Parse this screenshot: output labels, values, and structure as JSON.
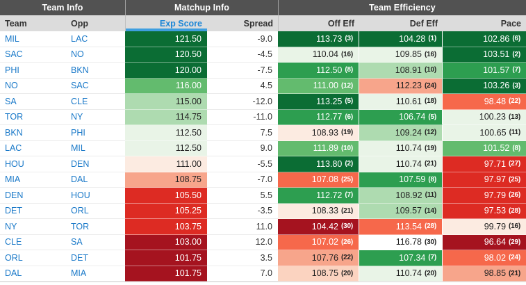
{
  "groups": [
    "Team Info",
    "Matchup Info",
    "Team Efficiency"
  ],
  "columns": [
    {
      "label": "Team"
    },
    {
      "label": "Opp"
    },
    {
      "label": "Exp Score"
    },
    {
      "label": "Spread"
    },
    {
      "label": "Off Eff"
    },
    {
      "label": "Def Eff"
    },
    {
      "label": "Pace"
    }
  ],
  "sort": {
    "column_index": 2,
    "accent": "#3f9fe0",
    "sorted_label_color": "#1e87d6"
  },
  "link_color": "#1878c8",
  "palette": {
    "g5": {
      "bg": "#0b6d34",
      "fg": "#ffffff"
    },
    "g4": {
      "bg": "#2d9e50",
      "fg": "#ffffff"
    },
    "g3": {
      "bg": "#63bb6e",
      "fg": "#ffffff"
    },
    "g2": {
      "bg": "#aedbb0",
      "fg": "#222222"
    },
    "g1": {
      "bg": "#e9f4e7",
      "fg": "#222222"
    },
    "w": {
      "bg": "#ffffff",
      "fg": "#222222"
    },
    "r1": {
      "bg": "#fcebe1",
      "fg": "#222222"
    },
    "r2": {
      "bg": "#fbd3c0",
      "fg": "#222222"
    },
    "r3": {
      "bg": "#f7a58b",
      "fg": "#222222"
    },
    "r4": {
      "bg": "#f6684b",
      "fg": "#ffffff"
    },
    "r5": {
      "bg": "#dd2b23",
      "fg": "#ffffff"
    },
    "r6": {
      "bg": "#a5131f",
      "fg": "#ffffff"
    }
  },
  "rows": [
    {
      "team": "MIL",
      "opp": "LAC",
      "exp": {
        "v": "121.50",
        "c": "g5"
      },
      "spread": "-9.0",
      "off": {
        "v": "113.73",
        "r": "(3)",
        "c": "g5"
      },
      "def": {
        "v": "104.28",
        "r": "(1)",
        "c": "g5"
      },
      "pace": {
        "v": "102.86",
        "r": "(6)",
        "c": "g5"
      }
    },
    {
      "team": "SAC",
      "opp": "NO",
      "exp": {
        "v": "120.50",
        "c": "g5"
      },
      "spread": "-4.5",
      "off": {
        "v": "110.04",
        "r": "(16)",
        "c": "g1"
      },
      "def": {
        "v": "109.85",
        "r": "(16)",
        "c": "g1"
      },
      "pace": {
        "v": "103.51",
        "r": "(2)",
        "c": "g5"
      }
    },
    {
      "team": "PHI",
      "opp": "BKN",
      "exp": {
        "v": "120.00",
        "c": "g5"
      },
      "spread": "-7.5",
      "off": {
        "v": "112.50",
        "r": "(8)",
        "c": "g4"
      },
      "def": {
        "v": "108.91",
        "r": "(10)",
        "c": "g2"
      },
      "pace": {
        "v": "101.57",
        "r": "(7)",
        "c": "g4"
      }
    },
    {
      "team": "NO",
      "opp": "SAC",
      "exp": {
        "v": "116.00",
        "c": "g3"
      },
      "spread": "4.5",
      "off": {
        "v": "111.00",
        "r": "(12)",
        "c": "g3"
      },
      "def": {
        "v": "112.23",
        "r": "(24)",
        "c": "r3"
      },
      "pace": {
        "v": "103.26",
        "r": "(3)",
        "c": "g5"
      }
    },
    {
      "team": "SA",
      "opp": "CLE",
      "exp": {
        "v": "115.00",
        "c": "g2"
      },
      "spread": "-12.0",
      "off": {
        "v": "113.25",
        "r": "(5)",
        "c": "g5"
      },
      "def": {
        "v": "110.61",
        "r": "(18)",
        "c": "g1"
      },
      "pace": {
        "v": "98.48",
        "r": "(22)",
        "c": "r4"
      }
    },
    {
      "team": "TOR",
      "opp": "NY",
      "exp": {
        "v": "114.75",
        "c": "g2"
      },
      "spread": "-11.0",
      "off": {
        "v": "112.77",
        "r": "(6)",
        "c": "g4"
      },
      "def": {
        "v": "106.74",
        "r": "(5)",
        "c": "g4"
      },
      "pace": {
        "v": "100.23",
        "r": "(13)",
        "c": "g1"
      }
    },
    {
      "team": "BKN",
      "opp": "PHI",
      "exp": {
        "v": "112.50",
        "c": "g1"
      },
      "spread": "7.5",
      "off": {
        "v": "108.93",
        "r": "(19)",
        "c": "r1"
      },
      "def": {
        "v": "109.24",
        "r": "(12)",
        "c": "g2"
      },
      "pace": {
        "v": "100.65",
        "r": "(11)",
        "c": "g1"
      }
    },
    {
      "team": "LAC",
      "opp": "MIL",
      "exp": {
        "v": "112.50",
        "c": "g1"
      },
      "spread": "9.0",
      "off": {
        "v": "111.89",
        "r": "(10)",
        "c": "g3"
      },
      "def": {
        "v": "110.74",
        "r": "(19)",
        "c": "g1"
      },
      "pace": {
        "v": "101.52",
        "r": "(8)",
        "c": "g3"
      }
    },
    {
      "team": "HOU",
      "opp": "DEN",
      "exp": {
        "v": "111.00",
        "c": "r1"
      },
      "spread": "-5.5",
      "off": {
        "v": "113.80",
        "r": "(2)",
        "c": "g5"
      },
      "def": {
        "v": "110.74",
        "r": "(21)",
        "c": "g1"
      },
      "pace": {
        "v": "97.71",
        "r": "(27)",
        "c": "r5"
      }
    },
    {
      "team": "MIA",
      "opp": "DAL",
      "exp": {
        "v": "108.75",
        "c": "r3"
      },
      "spread": "-7.0",
      "off": {
        "v": "107.08",
        "r": "(25)",
        "c": "r4"
      },
      "def": {
        "v": "107.59",
        "r": "(8)",
        "c": "g4"
      },
      "pace": {
        "v": "97.97",
        "r": "(25)",
        "c": "r5"
      }
    },
    {
      "team": "DEN",
      "opp": "HOU",
      "exp": {
        "v": "105.50",
        "c": "r5"
      },
      "spread": "5.5",
      "off": {
        "v": "112.72",
        "r": "(7)",
        "c": "g4"
      },
      "def": {
        "v": "108.92",
        "r": "(11)",
        "c": "g2"
      },
      "pace": {
        "v": "97.79",
        "r": "(26)",
        "c": "r5"
      }
    },
    {
      "team": "DET",
      "opp": "ORL",
      "exp": {
        "v": "105.25",
        "c": "r5"
      },
      "spread": "-3.5",
      "off": {
        "v": "108.33",
        "r": "(21)",
        "c": "r1"
      },
      "def": {
        "v": "109.57",
        "r": "(14)",
        "c": "g2"
      },
      "pace": {
        "v": "97.53",
        "r": "(28)",
        "c": "r5"
      }
    },
    {
      "team": "NY",
      "opp": "TOR",
      "exp": {
        "v": "103.75",
        "c": "r5"
      },
      "spread": "11.0",
      "off": {
        "v": "104.42",
        "r": "(30)",
        "c": "r6"
      },
      "def": {
        "v": "113.54",
        "r": "(28)",
        "c": "r4"
      },
      "pace": {
        "v": "99.79",
        "r": "(16)",
        "c": "r1"
      }
    },
    {
      "team": "CLE",
      "opp": "SA",
      "exp": {
        "v": "103.00",
        "c": "r6"
      },
      "spread": "12.0",
      "off": {
        "v": "107.02",
        "r": "(26)",
        "c": "r4"
      },
      "def": {
        "v": "116.78",
        "r": "(30)",
        "c": "w"
      },
      "pace": {
        "v": "96.64",
        "r": "(29)",
        "c": "r6"
      }
    },
    {
      "team": "ORL",
      "opp": "DET",
      "exp": {
        "v": "101.75",
        "c": "r6"
      },
      "spread": "3.5",
      "off": {
        "v": "107.76",
        "r": "(22)",
        "c": "r3"
      },
      "def": {
        "v": "107.34",
        "r": "(7)",
        "c": "g4"
      },
      "pace": {
        "v": "98.02",
        "r": "(24)",
        "c": "r4"
      }
    },
    {
      "team": "DAL",
      "opp": "MIA",
      "exp": {
        "v": "101.75",
        "c": "r6"
      },
      "spread": "7.0",
      "off": {
        "v": "108.75",
        "r": "(20)",
        "c": "r2"
      },
      "def": {
        "v": "110.74",
        "r": "(20)",
        "c": "g1"
      },
      "pace": {
        "v": "98.85",
        "r": "(21)",
        "c": "r3"
      }
    }
  ]
}
